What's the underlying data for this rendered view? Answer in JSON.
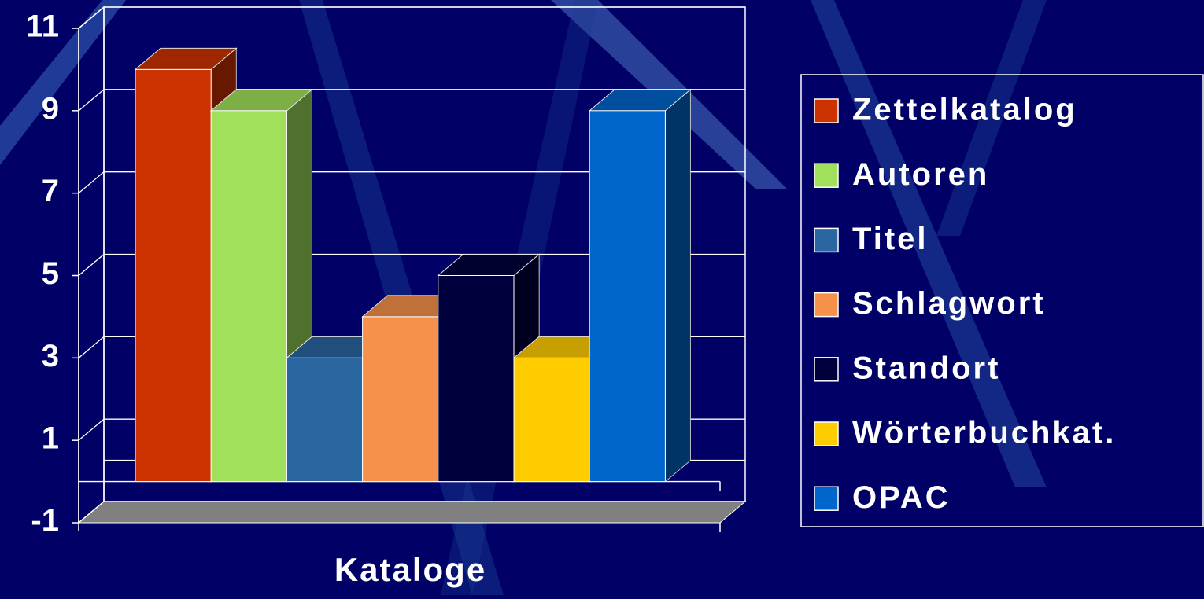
{
  "chart_data": {
    "type": "bar3d",
    "categories": [
      "Kataloge"
    ],
    "series": [
      {
        "name": "Zettelkatalog",
        "color": "#cc3300",
        "values": [
          10
        ]
      },
      {
        "name": "Autoren",
        "color": "#a0e05a",
        "values": [
          9
        ]
      },
      {
        "name": "Titel",
        "color": "#2a66a0",
        "values": [
          3
        ]
      },
      {
        "name": "Schlagwort",
        "color": "#f7904a",
        "values": [
          4
        ]
      },
      {
        "name": "Standort",
        "color": "#00003c",
        "values": [
          5
        ]
      },
      {
        "name": "Wörterbuchkat.",
        "color": "#ffcc00",
        "values": [
          3
        ]
      },
      {
        "name": "OPAC",
        "color": "#0066cc",
        "values": [
          9
        ]
      }
    ],
    "ylim": [
      -1,
      11
    ],
    "yticks": [
      -1,
      1,
      3,
      5,
      7,
      9,
      11
    ],
    "grid": true,
    "legend": "right"
  }
}
